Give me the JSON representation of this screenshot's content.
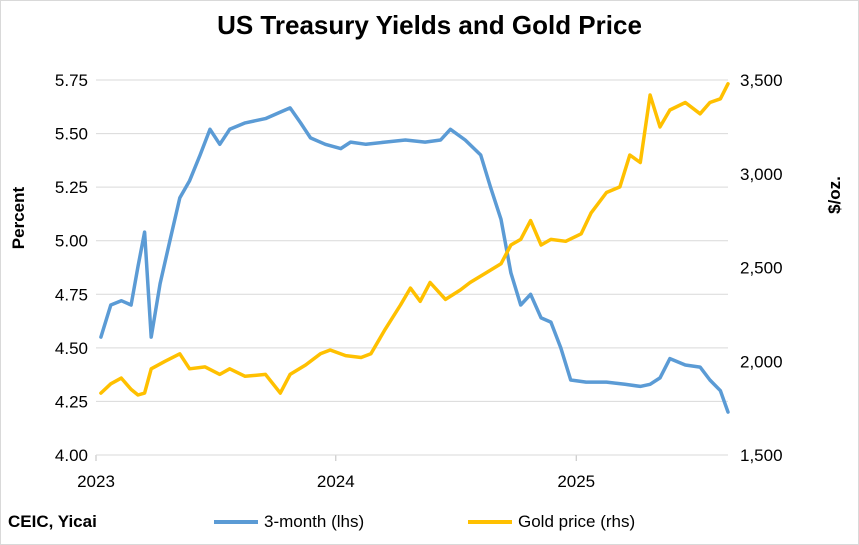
{
  "chart_data": {
    "type": "line",
    "title": "US Treasury Yields and Gold Price",
    "source": "CEIC, Yicai",
    "x_ticks": [
      "2023",
      "2024",
      "2025"
    ],
    "x_range": [
      "2023-01",
      "2025-08"
    ],
    "left_axis": {
      "label": "Percent",
      "ylim": [
        4.0,
        5.75
      ],
      "ticks": [
        "4.00",
        "4.25",
        "4.50",
        "4.75",
        "5.00",
        "5.25",
        "5.50",
        "5.75"
      ]
    },
    "right_axis": {
      "label": "$/oz.",
      "ylim": [
        1500,
        3500
      ],
      "ticks": [
        "1,500",
        "2,000",
        "2,500",
        "3,000",
        "3,500"
      ]
    },
    "grid": "horizontal",
    "legend_position": "bottom",
    "series": [
      {
        "name": "3-month (lhs)",
        "axis": "left",
        "color": "#5b9bd5",
        "points": [
          [
            "2023-01",
            4.55
          ],
          [
            "2023-01",
            4.7
          ],
          [
            "2023-02",
            4.72
          ],
          [
            "2023-02",
            4.7
          ],
          [
            "2023-03",
            4.88
          ],
          [
            "2023-03",
            5.04
          ],
          [
            "2023-03",
            4.55
          ],
          [
            "2023-04",
            4.8
          ],
          [
            "2023-04",
            5.0
          ],
          [
            "2023-05",
            5.2
          ],
          [
            "2023-05",
            5.28
          ],
          [
            "2023-06",
            5.4
          ],
          [
            "2023-06",
            5.52
          ],
          [
            "2023-07",
            5.45
          ],
          [
            "2023-07",
            5.52
          ],
          [
            "2023-08",
            5.55
          ],
          [
            "2023-09",
            5.57
          ],
          [
            "2023-10",
            5.6
          ],
          [
            "2023-10",
            5.62
          ],
          [
            "2023-11",
            5.55
          ],
          [
            "2023-11",
            5.48
          ],
          [
            "2023-12",
            5.45
          ],
          [
            "2024-01",
            5.43
          ],
          [
            "2024-01",
            5.46
          ],
          [
            "2024-02",
            5.45
          ],
          [
            "2024-03",
            5.46
          ],
          [
            "2024-04",
            5.47
          ],
          [
            "2024-05",
            5.46
          ],
          [
            "2024-06",
            5.47
          ],
          [
            "2024-06",
            5.52
          ],
          [
            "2024-07",
            5.47
          ],
          [
            "2024-08",
            5.4
          ],
          [
            "2024-08",
            5.25
          ],
          [
            "2024-09",
            5.1
          ],
          [
            "2024-09",
            4.85
          ],
          [
            "2024-10",
            4.7
          ],
          [
            "2024-10",
            4.75
          ],
          [
            "2024-11",
            4.64
          ],
          [
            "2024-11",
            4.62
          ],
          [
            "2024-12",
            4.5
          ],
          [
            "2024-12",
            4.35
          ],
          [
            "2025-01",
            4.34
          ],
          [
            "2025-02",
            4.34
          ],
          [
            "2025-03",
            4.33
          ],
          [
            "2025-04",
            4.32
          ],
          [
            "2025-04",
            4.33
          ],
          [
            "2025-05",
            4.36
          ],
          [
            "2025-05",
            4.45
          ],
          [
            "2025-06",
            4.42
          ],
          [
            "2025-07",
            4.41
          ],
          [
            "2025-07",
            4.35
          ],
          [
            "2025-08",
            4.3
          ],
          [
            "2025-08",
            4.2
          ]
        ]
      },
      {
        "name": "Gold price (rhs)",
        "axis": "right",
        "color": "#ffc000",
        "points": [
          [
            "2023-01",
            1830
          ],
          [
            "2023-01",
            1880
          ],
          [
            "2023-02",
            1910
          ],
          [
            "2023-02",
            1850
          ],
          [
            "2023-03",
            1820
          ],
          [
            "2023-03",
            1830
          ],
          [
            "2023-03",
            1960
          ],
          [
            "2023-04",
            2000
          ],
          [
            "2023-05",
            2040
          ],
          [
            "2023-05",
            1960
          ],
          [
            "2023-06",
            1970
          ],
          [
            "2023-07",
            1930
          ],
          [
            "2023-07",
            1960
          ],
          [
            "2023-08",
            1920
          ],
          [
            "2023-09",
            1930
          ],
          [
            "2023-10",
            1830
          ],
          [
            "2023-10",
            1930
          ],
          [
            "2023-11",
            1980
          ],
          [
            "2023-12",
            2040
          ],
          [
            "2023-12",
            2060
          ],
          [
            "2024-01",
            2030
          ],
          [
            "2024-02",
            2020
          ],
          [
            "2024-02",
            2040
          ],
          [
            "2024-03",
            2170
          ],
          [
            "2024-04",
            2300
          ],
          [
            "2024-04",
            2390
          ],
          [
            "2024-05",
            2320
          ],
          [
            "2024-05",
            2420
          ],
          [
            "2024-06",
            2330
          ],
          [
            "2024-07",
            2380
          ],
          [
            "2024-07",
            2420
          ],
          [
            "2024-08",
            2470
          ],
          [
            "2024-09",
            2520
          ],
          [
            "2024-09",
            2620
          ],
          [
            "2024-10",
            2650
          ],
          [
            "2024-10",
            2750
          ],
          [
            "2024-11",
            2620
          ],
          [
            "2024-11",
            2650
          ],
          [
            "2024-12",
            2640
          ],
          [
            "2025-01",
            2680
          ],
          [
            "2025-01",
            2790
          ],
          [
            "2025-02",
            2900
          ],
          [
            "2025-03",
            2930
          ],
          [
            "2025-03",
            3100
          ],
          [
            "2025-04",
            3060
          ],
          [
            "2025-04",
            3420
          ],
          [
            "2025-05",
            3250
          ],
          [
            "2025-05",
            3340
          ],
          [
            "2025-06",
            3380
          ],
          [
            "2025-07",
            3320
          ],
          [
            "2025-07",
            3380
          ],
          [
            "2025-08",
            3400
          ],
          [
            "2025-08",
            3480
          ]
        ]
      }
    ]
  }
}
